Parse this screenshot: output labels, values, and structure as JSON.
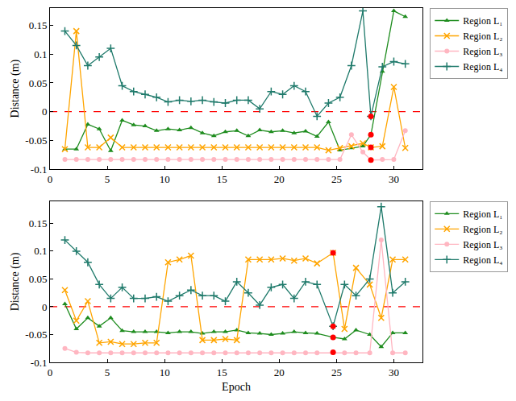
{
  "chart_data": [
    {
      "type": "line",
      "ylabel": "Distance (m)",
      "xlim": [
        0,
        32.5
      ],
      "xticks": [
        0,
        5,
        10,
        15,
        20,
        25,
        30
      ],
      "ylim": [
        -0.1,
        0.18
      ],
      "yticks": [
        -0.1,
        -0.05,
        0,
        0.05,
        0.1,
        0.15
      ],
      "grid": false,
      "legend": "right",
      "x": [
        1.3,
        2.3,
        3.3,
        4.3,
        5.3,
        6.3,
        7.3,
        8.3,
        9.3,
        10.3,
        11.3,
        12.3,
        13.3,
        14.3,
        15.3,
        16.3,
        17.3,
        18.3,
        19.3,
        20.3,
        21.3,
        22.3,
        23.3,
        24.3,
        25.3,
        26.3,
        27.3,
        28.0,
        29.0,
        30.0,
        31.0
      ],
      "series": [
        {
          "name": "Region L₁",
          "color": "#1e8c1e",
          "marker": "triangle",
          "values": [
            -0.065,
            -0.065,
            -0.022,
            -0.03,
            -0.068,
            -0.015,
            -0.023,
            -0.025,
            -0.033,
            -0.03,
            -0.032,
            -0.028,
            -0.037,
            -0.042,
            -0.035,
            -0.033,
            -0.042,
            -0.032,
            -0.035,
            -0.033,
            -0.037,
            -0.034,
            -0.043,
            -0.018,
            -0.067,
            -0.063,
            -0.06,
            -0.04,
            0.07,
            0.175,
            0.165
          ]
        },
        {
          "name": "Region L₂",
          "color": "#ffa500",
          "marker": "x",
          "values": [
            -0.065,
            0.14,
            -0.062,
            -0.062,
            -0.045,
            -0.062,
            -0.062,
            -0.062,
            -0.062,
            -0.062,
            -0.062,
            -0.062,
            -0.062,
            -0.062,
            -0.062,
            -0.062,
            -0.062,
            -0.062,
            -0.062,
            -0.062,
            -0.062,
            -0.062,
            -0.062,
            -0.067,
            -0.063,
            -0.06,
            -0.055,
            -0.062,
            -0.06,
            0.043,
            -0.063
          ]
        },
        {
          "name": "Region L₃",
          "color": "#ffb6c1",
          "marker": "circle",
          "values": [
            -0.083,
            -0.083,
            -0.083,
            -0.083,
            -0.083,
            -0.083,
            -0.083,
            -0.083,
            -0.083,
            -0.083,
            -0.083,
            -0.083,
            -0.083,
            -0.083,
            -0.083,
            -0.083,
            -0.083,
            -0.083,
            -0.083,
            -0.083,
            -0.083,
            -0.083,
            -0.083,
            -0.083,
            -0.083,
            -0.04,
            -0.07,
            -0.084,
            -0.083,
            -0.083,
            -0.033
          ]
        },
        {
          "name": "Region L₄",
          "color": "#1f7a6b",
          "marker": "plus",
          "values": [
            0.14,
            0.115,
            0.08,
            0.095,
            0.11,
            0.045,
            0.035,
            0.03,
            0.025,
            0.017,
            0.02,
            0.018,
            0.02,
            0.017,
            0.015,
            0.02,
            0.02,
            0.005,
            0.035,
            0.03,
            0.045,
            0.035,
            -0.008,
            0.015,
            0.025,
            0.08,
            0.175,
            -0.008,
            0.078,
            0.087,
            0.083
          ]
        }
      ],
      "highlight_points": {
        "color": "#ff0000",
        "x": [
          28.0,
          28.0,
          28.0,
          28.0
        ],
        "y": [
          -0.008,
          -0.04,
          -0.062,
          -0.084
        ]
      },
      "reference_line": {
        "y": 0,
        "color": "#ff0000",
        "line_style": "dashed"
      }
    },
    {
      "type": "line",
      "ylabel": "Distance (m)",
      "xlabel": "Epoch",
      "xlim": [
        0,
        32.5
      ],
      "xticks": [
        0,
        5,
        10,
        15,
        20,
        25,
        30
      ],
      "ylim": [
        -0.1,
        0.19
      ],
      "yticks": [
        -0.1,
        -0.05,
        0,
        0.05,
        0.1,
        0.15
      ],
      "grid": false,
      "legend": "right",
      "x": [
        1.3,
        2.3,
        3.3,
        4.3,
        5.3,
        6.3,
        7.3,
        8.3,
        9.3,
        10.3,
        11.3,
        12.3,
        13.3,
        14.3,
        15.3,
        16.3,
        17.3,
        18.3,
        19.3,
        20.3,
        21.3,
        22.3,
        23.3,
        24.7,
        25.7,
        26.7,
        27.9,
        28.9,
        29.9,
        31.0
      ],
      "series": [
        {
          "name": "Region L₁",
          "color": "#1e8c1e",
          "marker": "triangle",
          "values": [
            0.005,
            -0.04,
            -0.02,
            -0.035,
            -0.02,
            -0.043,
            -0.045,
            -0.045,
            -0.045,
            -0.047,
            -0.045,
            -0.045,
            -0.048,
            -0.045,
            -0.045,
            -0.042,
            -0.047,
            -0.048,
            -0.05,
            -0.048,
            -0.045,
            -0.047,
            -0.048,
            -0.055,
            -0.058,
            -0.042,
            -0.05,
            -0.072,
            -0.047,
            -0.047
          ]
        },
        {
          "name": "Region L₂",
          "color": "#ffa500",
          "marker": "x",
          "values": [
            0.03,
            -0.025,
            0.01,
            -0.065,
            -0.063,
            -0.067,
            -0.067,
            -0.065,
            -0.065,
            0.08,
            0.085,
            0.092,
            -0.06,
            -0.06,
            -0.058,
            -0.06,
            0.085,
            0.085,
            0.085,
            0.087,
            0.083,
            0.087,
            0.078,
            0.097,
            -0.04,
            0.07,
            0.04,
            -0.02,
            0.085,
            0.085
          ]
        },
        {
          "name": "Region L₃",
          "color": "#ffb6c1",
          "marker": "circle",
          "values": [
            -0.075,
            -0.082,
            -0.083,
            -0.083,
            -0.083,
            -0.083,
            -0.083,
            -0.083,
            -0.083,
            -0.083,
            -0.083,
            -0.083,
            -0.083,
            -0.083,
            -0.083,
            -0.083,
            -0.083,
            -0.083,
            -0.083,
            -0.083,
            -0.083,
            -0.083,
            -0.083,
            -0.082,
            -0.083,
            -0.083,
            -0.083,
            0.12,
            -0.083,
            -0.083
          ]
        },
        {
          "name": "Region L₄",
          "color": "#1f7a6b",
          "marker": "plus",
          "values": [
            0.12,
            0.1,
            0.08,
            0.04,
            0.015,
            0.035,
            0.015,
            0.015,
            0.018,
            0.01,
            0.02,
            0.03,
            0.02,
            0.02,
            0.01,
            0.045,
            0.025,
            0.003,
            0.035,
            0.04,
            0.015,
            0.045,
            0.04,
            -0.035,
            0.04,
            0.02,
            0.05,
            0.18,
            0.025,
            0.045
          ]
        }
      ],
      "highlight_points": {
        "color": "#ff0000",
        "x": [
          24.7,
          24.7,
          24.7,
          24.7
        ],
        "y": [
          0.097,
          -0.035,
          -0.055,
          -0.082
        ]
      },
      "reference_line": {
        "y": 0,
        "color": "#ff0000",
        "line_style": "dashed"
      }
    }
  ]
}
